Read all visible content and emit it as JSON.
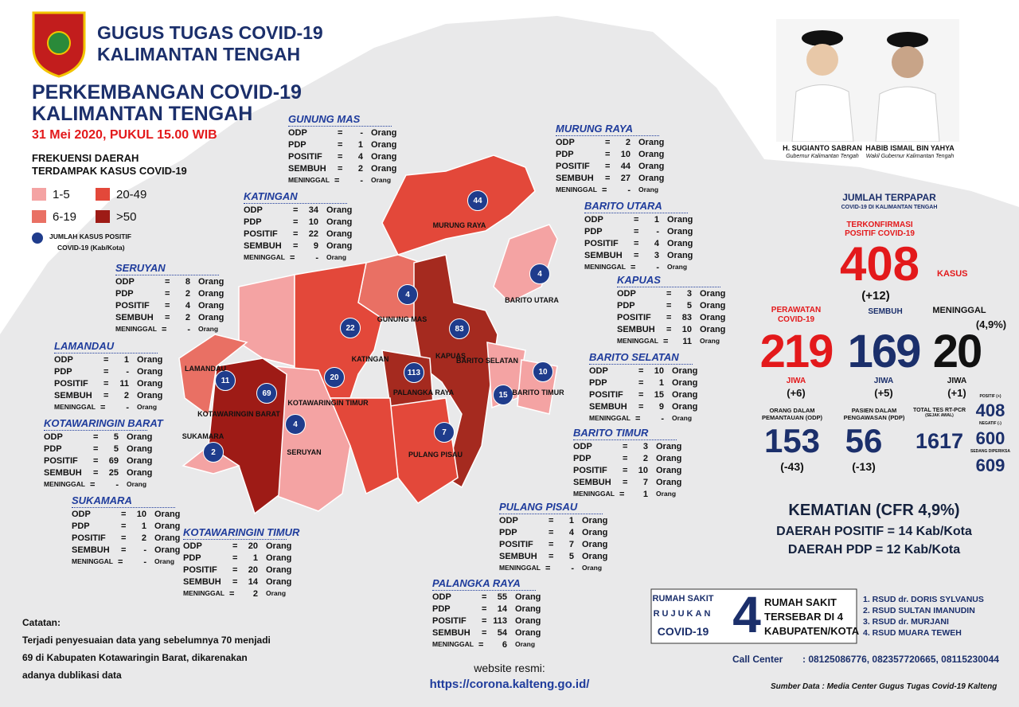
{
  "header": {
    "org_line1": "GUGUS TUGAS COVID-19",
    "org_line2": "KALIMANTAN TENGAH",
    "title_line1": "PERKEMBANGAN COVID-19",
    "title_line2": "KALIMANTAN TENGAH",
    "date": "31 Mei 2020, PUKUL 15.00 WIB"
  },
  "legend": {
    "title_line1": "FREKUENSI DAERAH",
    "title_line2": "TERDAMPAK KASUS COVID-19",
    "items": [
      {
        "label": "1-5",
        "color": "#f4a3a3"
      },
      {
        "label": "20-49",
        "color": "#e3483a"
      },
      {
        "label": "6-19",
        "color": "#e97064"
      },
      {
        "label": ">50",
        "color": "#9e1b16"
      }
    ],
    "marker_line1": "JUMLAH KASUS POSITIF",
    "marker_line2": "COVID-19 (Kab/Kota)",
    "marker_color": "#1f3c8c"
  },
  "officials": [
    {
      "name": "H. SUGIANTO SABRAN",
      "role": "Gubernur Kalimantan Tengah"
    },
    {
      "name": "HABIB ISMAIL BIN YAHYA",
      "role": "Wakil Gubernur Kalimantan Tengah"
    }
  ],
  "row_labels": [
    "ODP",
    "PDP",
    "POSITIF",
    "SEMBUH",
    "MENINGGAL"
  ],
  "sep": "=",
  "unit": "Orang",
  "regions": [
    {
      "name": "GUNUNG MAS",
      "values": [
        "-",
        1,
        4,
        2,
        "-"
      ]
    },
    {
      "name": "MURUNG RAYA",
      "values": [
        2,
        10,
        44,
        27,
        "-"
      ]
    },
    {
      "name": "KATINGAN",
      "values": [
        34,
        10,
        22,
        9,
        "-"
      ]
    },
    {
      "name": "BARITO UTARA",
      "values": [
        1,
        "-",
        4,
        3,
        "-"
      ]
    },
    {
      "name": "SERUYAN",
      "values": [
        8,
        2,
        4,
        2,
        "-"
      ]
    },
    {
      "name": "KAPUAS",
      "values": [
        3,
        5,
        83,
        10,
        11
      ]
    },
    {
      "name": "LAMANDAU",
      "values": [
        1,
        "-",
        11,
        2,
        "-"
      ]
    },
    {
      "name": "BARITO SELATAN",
      "values": [
        10,
        1,
        15,
        9,
        "-"
      ]
    },
    {
      "name": "KOTAWARINGIN BARAT",
      "values": [
        5,
        5,
        69,
        25,
        "-"
      ]
    },
    {
      "name": "BARITO TIMUR",
      "values": [
        3,
        2,
        10,
        7,
        1
      ]
    },
    {
      "name": "SUKAMARA",
      "values": [
        10,
        1,
        2,
        "-",
        "-"
      ]
    },
    {
      "name": "PULANG PISAU",
      "values": [
        1,
        4,
        7,
        5,
        "-"
      ]
    },
    {
      "name": "KOTAWARINGIN TIMUR",
      "values": [
        20,
        1,
        20,
        14,
        2
      ]
    },
    {
      "name": "PALANGKA RAYA",
      "values": [
        55,
        14,
        113,
        54,
        6
      ]
    }
  ],
  "summary": {
    "heading": "JUMLAH TERPAPAR",
    "subheading": "COVID-19 DI KALIMANTAN TENGAH",
    "confirmed": {
      "label_line1": "TERKONFIRMASI",
      "label_line2": "POSITIF COVID-19",
      "value": 408,
      "unit": "KASUS",
      "change": "(+12)"
    },
    "treated": {
      "label_line1": "PERAWATAN",
      "label_line2": "COVID-19",
      "value": 219,
      "unit": "JIWA",
      "change": "(+6)"
    },
    "recovered": {
      "label": "SEMBUH",
      "value": 169,
      "unit": "JIWA",
      "change": "(+5)"
    },
    "deaths": {
      "label": "MENINGGAL",
      "rate": "(4,9%)",
      "value": 20,
      "unit": "JIWA",
      "change": "(+1)"
    },
    "odp": {
      "label_line1": "ORANG DALAM",
      "label_line2": "PEMANTAUAN (ODP)",
      "value": 153,
      "change": "(-43)"
    },
    "pdp": {
      "label_line1": "PASIEN DALAM",
      "label_line2": "PENGAWASAN (PDP)",
      "value": 56,
      "change": "(-13)"
    },
    "tests": {
      "label_line1": "TOTAL TES RT-PCR",
      "label_line2": "(SEJAK AWAL)",
      "value": 1617,
      "positive_label": "POSITIF (+)",
      "positive": 408,
      "negative_label": "NEGATIF (-)",
      "negative": 600,
      "pending_label": "SEDANG DIPERIKSA",
      "pending": 609
    }
  },
  "mortality": {
    "line1": "KEMATIAN (CFR 4,9%)",
    "line2": "DAERAH POSITIF = 14 Kab/Kota",
    "line3": "DAERAH PDP = 12 Kab/Kota"
  },
  "hospitals": {
    "title_lines": [
      "RUMAH SAKIT",
      "RUJUKAN",
      "COVID-19"
    ],
    "count": 4,
    "desc_lines": [
      "RUMAH SAKIT",
      "TERSEBAR DI 4",
      "KABUPATEN/KOTA"
    ],
    "list": [
      "1. RSUD dr. DORIS SYLVANUS",
      "2. RSUD SULTAN IMANUDIN",
      "3. RSUD dr. MURJANI",
      "4. RSUD MUARA TEWEH"
    ]
  },
  "notes": {
    "title": "Catatan:",
    "lines": [
      "Terjadi penyesuaian data yang sebelumnya 70 menjadi",
      "69 di Kabupaten Kotawaringin Barat, dikarenakan",
      "adanya dublikasi data"
    ]
  },
  "website": {
    "label": "website resmi:",
    "url": "https://corona.kalteng.go.id/"
  },
  "call_center": {
    "label": "Call Center",
    "numbers": ": 08125086776, 082357720665, 08115230044"
  },
  "source": "Sumber Data : Media Center Gugus Tugas Covid-19 Kalteng"
}
